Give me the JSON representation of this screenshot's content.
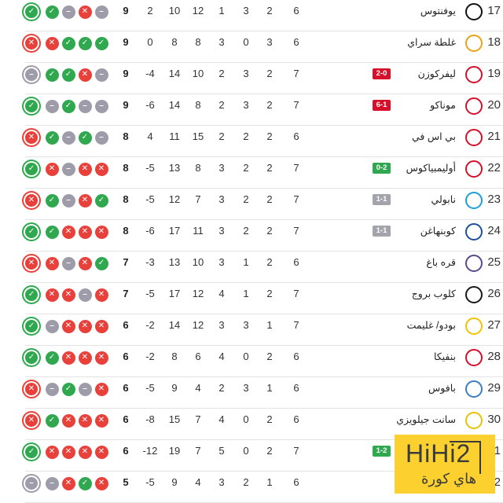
{
  "colors": {
    "win": "#2fa84f",
    "loss": "#e8413b",
    "draw": "#9d9ca8",
    "watermark_bg": "#fcd12f"
  },
  "rows": [
    {
      "rank": "17",
      "team": "يوفنتوس",
      "logo": "juventus-logo",
      "badge": "",
      "badge_color": "",
      "played": "6",
      "won": "2",
      "drawn": "3",
      "lost": "1",
      "gf": "12",
      "ga": "10",
      "gd": "2",
      "pts": "9",
      "form": [
        "W",
        "W",
        "D",
        "L",
        "D"
      ]
    },
    {
      "rank": "18",
      "team": "غلطة سراي",
      "logo": "galatasaray-logo",
      "badge": "",
      "badge_color": "",
      "played": "6",
      "won": "3",
      "drawn": "0",
      "lost": "3",
      "gf": "8",
      "ga": "8",
      "gd": "0",
      "pts": "9",
      "form": [
        "L",
        "L",
        "W",
        "W",
        "W"
      ]
    },
    {
      "rank": "19",
      "team": "ليفركوزن",
      "logo": "leverkusen-logo",
      "badge": "2-0",
      "badge_color": "#d6102a",
      "played": "7",
      "won": "2",
      "drawn": "3",
      "lost": "2",
      "gf": "10",
      "ga": "14",
      "gd": "-4",
      "pts": "9",
      "form": [
        "D",
        "W",
        "W",
        "L",
        "D"
      ]
    },
    {
      "rank": "20",
      "team": "موناكو",
      "logo": "monaco-logo",
      "badge": "6-1",
      "badge_color": "#d6102a",
      "played": "7",
      "won": "2",
      "drawn": "3",
      "lost": "2",
      "gf": "8",
      "ga": "14",
      "gd": "-6",
      "pts": "9",
      "form": [
        "W",
        "D",
        "W",
        "D",
        "D"
      ]
    },
    {
      "rank": "21",
      "team": "بي اس في",
      "logo": "psv-logo",
      "badge": "",
      "badge_color": "",
      "played": "6",
      "won": "2",
      "drawn": "2",
      "lost": "2",
      "gf": "15",
      "ga": "11",
      "gd": "4",
      "pts": "8",
      "form": [
        "L",
        "W",
        "D",
        "W",
        "D"
      ]
    },
    {
      "rank": "22",
      "team": "أوليمبياكوس",
      "logo": "olympiacos-logo",
      "badge": "0-2",
      "badge_color": "#2fa84f",
      "played": "7",
      "won": "2",
      "drawn": "2",
      "lost": "3",
      "gf": "8",
      "ga": "13",
      "gd": "-5",
      "pts": "8",
      "form": [
        "W",
        "L",
        "D",
        "L",
        "L"
      ]
    },
    {
      "rank": "23",
      "team": "نابولي",
      "logo": "napoli-logo",
      "badge": "1-1",
      "badge_color": "#a3a3ab",
      "played": "7",
      "won": "2",
      "drawn": "2",
      "lost": "3",
      "gf": "7",
      "ga": "12",
      "gd": "-5",
      "pts": "8",
      "form": [
        "L",
        "W",
        "D",
        "L",
        "W"
      ]
    },
    {
      "rank": "24",
      "team": "كوبنهاغن",
      "logo": "copenhagen-logo",
      "badge": "1-1",
      "badge_color": "#a3a3ab",
      "played": "7",
      "won": "2",
      "drawn": "2",
      "lost": "3",
      "gf": "11",
      "ga": "17",
      "gd": "-6",
      "pts": "8",
      "form": [
        "W",
        "W",
        "L",
        "L",
        "L"
      ]
    },
    {
      "rank": "25",
      "team": "قره باغ",
      "logo": "qarabag-logo",
      "badge": "",
      "badge_color": "",
      "played": "6",
      "won": "2",
      "drawn": "1",
      "lost": "3",
      "gf": "10",
      "ga": "13",
      "gd": "-3",
      "pts": "7",
      "form": [
        "L",
        "L",
        "D",
        "L",
        "W"
      ]
    },
    {
      "rank": "26",
      "team": "كلوب بروج",
      "logo": "club-brugge-logo",
      "badge": "",
      "badge_color": "",
      "played": "7",
      "won": "2",
      "drawn": "1",
      "lost": "4",
      "gf": "12",
      "ga": "17",
      "gd": "-5",
      "pts": "7",
      "form": [
        "W",
        "L",
        "L",
        "D",
        "L"
      ]
    },
    {
      "rank": "27",
      "team": "بودو/ غليمت",
      "logo": "bodo-glimt-logo",
      "badge": "",
      "badge_color": "",
      "played": "7",
      "won": "1",
      "drawn": "3",
      "lost": "3",
      "gf": "12",
      "ga": "14",
      "gd": "-2",
      "pts": "6",
      "form": [
        "W",
        "D",
        "L",
        "L",
        "L"
      ]
    },
    {
      "rank": "28",
      "team": "بنفيكا",
      "logo": "benfica-logo",
      "badge": "",
      "badge_color": "",
      "played": "6",
      "won": "2",
      "drawn": "0",
      "lost": "4",
      "gf": "6",
      "ga": "8",
      "gd": "-2",
      "pts": "6",
      "form": [
        "W",
        "W",
        "L",
        "L",
        "L"
      ]
    },
    {
      "rank": "29",
      "team": "بافوس",
      "logo": "pafos-logo",
      "badge": "",
      "badge_color": "",
      "played": "6",
      "won": "1",
      "drawn": "3",
      "lost": "2",
      "gf": "4",
      "ga": "9",
      "gd": "-5",
      "pts": "6",
      "form": [
        "L",
        "D",
        "W",
        "D",
        "L"
      ]
    },
    {
      "rank": "30",
      "team": "سانت جيلويزي",
      "logo": "union-sg-logo",
      "badge": "",
      "badge_color": "",
      "played": "6",
      "won": "2",
      "drawn": "0",
      "lost": "4",
      "gf": "7",
      "ga": "15",
      "gd": "-8",
      "pts": "6",
      "form": [
        "L",
        "W",
        "L",
        "L",
        "L"
      ]
    },
    {
      "rank": "1",
      "team": "",
      "logo": "",
      "badge": "1-2",
      "badge_color": "#2fa84f",
      "played": "7",
      "won": "2",
      "drawn": "0",
      "lost": "5",
      "gf": "7",
      "ga": "19",
      "gd": "-12",
      "pts": "6",
      "form": [
        "W",
        "L",
        "L",
        "L",
        "L"
      ]
    },
    {
      "rank": "2",
      "team": "",
      "logo": "",
      "badge": "",
      "badge_color": "",
      "played": "6",
      "won": "1",
      "drawn": "2",
      "lost": "3",
      "gf": "4",
      "ga": "9",
      "gd": "-5",
      "pts": "5",
      "form": [
        "D",
        "D",
        "L",
        "W",
        "L"
      ]
    }
  ],
  "watermark": {
    "brand": "HiHi2",
    "arabic": "هاي كورة"
  }
}
